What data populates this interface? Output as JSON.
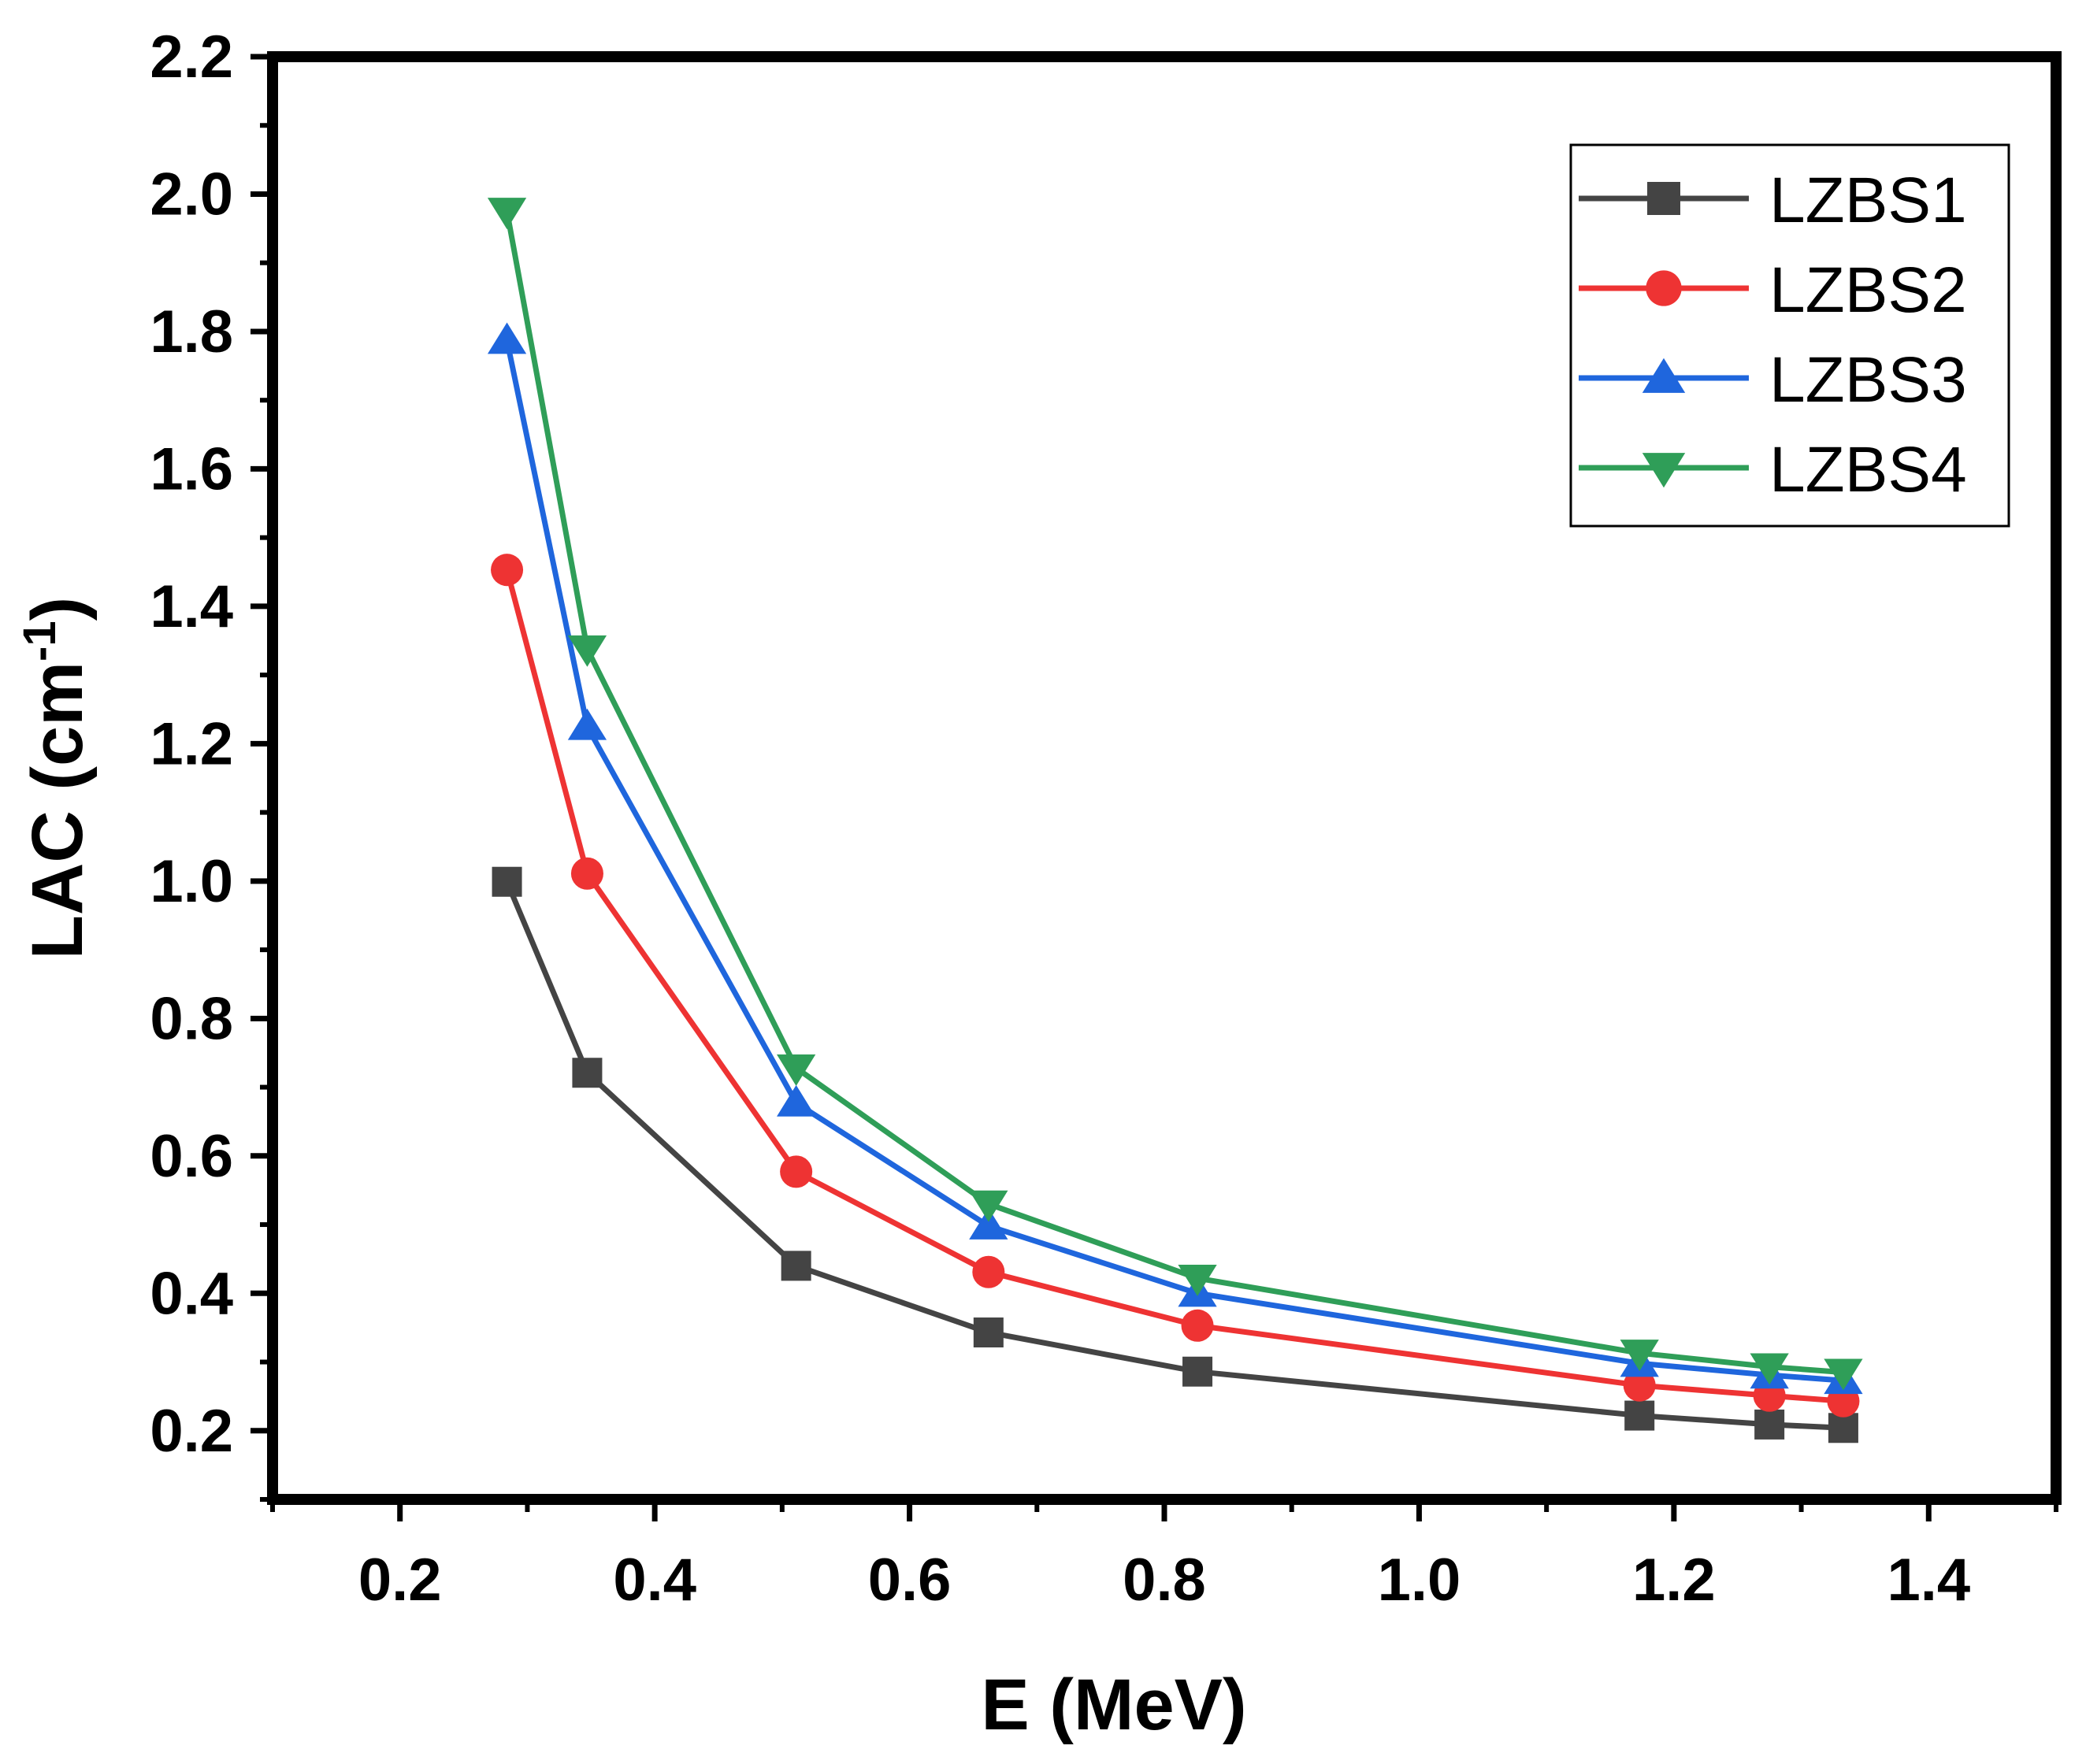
{
  "chart_data": {
    "type": "line",
    "title": "",
    "xlabel": "E (MeV)",
    "ylabel_main": "LAC (cm",
    "ylabel_sup": "-1",
    "ylabel_close": ")",
    "xlim": [
      0.1,
      1.5
    ],
    "ylim": [
      0.1,
      2.2
    ],
    "xticks": [
      0.2,
      0.4,
      0.6,
      0.8,
      1.0,
      1.2,
      1.4
    ],
    "yticks": [
      0.2,
      0.4,
      0.6,
      0.8,
      1.0,
      1.2,
      1.4,
      1.6,
      1.8,
      2.0,
      2.2
    ],
    "xtick_labels": [
      "0.2",
      "0.4",
      "0.6",
      "0.8",
      "1.0",
      "1.2",
      "1.4"
    ],
    "ytick_labels": [
      "0.2",
      "0.4",
      "0.6",
      "0.8",
      "1.0",
      "1.2",
      "1.4",
      "1.6",
      "1.8",
      "2.0",
      "2.2"
    ],
    "legend_position": "top-right",
    "x": [
      0.284,
      0.347,
      0.511,
      0.662,
      0.826,
      1.173,
      1.275,
      1.333
    ],
    "series": [
      {
        "name": "LZBS1",
        "color": "#444444",
        "marker": "square",
        "values": [
          0.999,
          0.721,
          0.44,
          0.343,
          0.286,
          0.222,
          0.209,
          0.204
        ]
      },
      {
        "name": "LZBS2",
        "color": "#ee3333",
        "marker": "circle",
        "values": [
          1.453,
          1.011,
          0.577,
          0.431,
          0.353,
          0.266,
          0.251,
          0.243
        ]
      },
      {
        "name": "LZBS3",
        "color": "#1f66dd",
        "marker": "triangle-up",
        "values": [
          1.787,
          1.225,
          0.677,
          0.498,
          0.4,
          0.298,
          0.281,
          0.273
        ]
      },
      {
        "name": "LZBS4",
        "color": "#2f9e58",
        "marker": "triangle-down",
        "values": [
          1.975,
          1.338,
          0.728,
          0.53,
          0.422,
          0.313,
          0.293,
          0.285
        ]
      }
    ]
  }
}
